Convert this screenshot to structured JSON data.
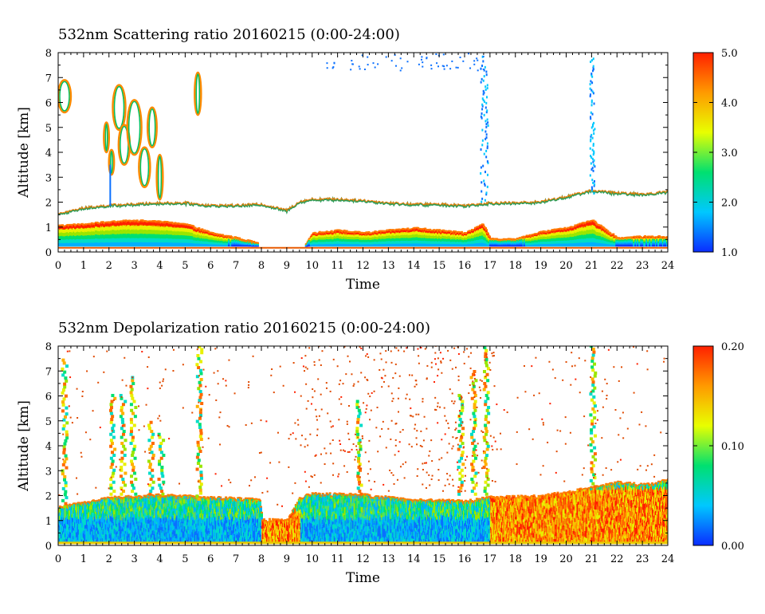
{
  "chart_data": [
    {
      "type": "heatmap",
      "title": "532nm Scattering ratio  20160215 (0:00-24:00)",
      "xlabel": "Time",
      "ylabel": "Altitude [km]",
      "xlim": [
        0,
        24
      ],
      "ylim": [
        0,
        8
      ],
      "x_ticks": [
        "0",
        "1",
        "2",
        "3",
        "4",
        "5",
        "6",
        "7",
        "8",
        "9",
        "10",
        "11",
        "12",
        "13",
        "14",
        "15",
        "16",
        "17",
        "18",
        "19",
        "20",
        "21",
        "22",
        "23",
        "24"
      ],
      "y_ticks": [
        "0",
        "1",
        "2",
        "3",
        "4",
        "5",
        "6",
        "7",
        "8"
      ],
      "colorbar": {
        "range": [
          1.0,
          5.0
        ],
        "tick_labels": [
          "1.0",
          "2.0",
          "3.0",
          "4.0",
          "5.0"
        ],
        "tick_values": [
          1.0,
          2.0,
          3.0,
          4.0,
          5.0
        ],
        "colors": [
          "#0a2cff",
          "#00c8ff",
          "#00e070",
          "#e8ff00",
          "#ff9a00",
          "#ff2000"
        ]
      },
      "boundary_layer_top_km": [
        [
          0,
          1.5
        ],
        [
          1,
          1.75
        ],
        [
          2,
          1.85
        ],
        [
          3,
          1.9
        ],
        [
          4,
          1.95
        ],
        [
          5,
          1.95
        ],
        [
          6,
          1.85
        ],
        [
          7,
          1.85
        ],
        [
          8,
          1.9
        ],
        [
          9,
          1.65
        ],
        [
          9.5,
          2.0
        ],
        [
          10,
          2.1
        ],
        [
          11,
          2.1
        ],
        [
          12,
          2.05
        ],
        [
          13,
          1.95
        ],
        [
          14,
          1.9
        ],
        [
          15,
          1.9
        ],
        [
          16,
          1.85
        ],
        [
          17,
          1.95
        ],
        [
          18,
          1.95
        ],
        [
          19,
          2.0
        ],
        [
          20,
          2.2
        ],
        [
          21,
          2.45
        ],
        [
          22,
          2.35
        ],
        [
          23,
          2.3
        ],
        [
          24,
          2.4
        ]
      ],
      "aerosol_layer_top_km": [
        [
          0,
          1.05
        ],
        [
          1,
          1.1
        ],
        [
          2,
          1.2
        ],
        [
          3,
          1.25
        ],
        [
          4,
          1.2
        ],
        [
          5,
          1.1
        ],
        [
          6,
          0.75
        ],
        [
          7,
          0.55
        ],
        [
          7.8,
          0.35
        ],
        [
          8,
          0.0
        ],
        [
          9.5,
          0.0
        ],
        [
          10,
          0.75
        ],
        [
          11,
          0.85
        ],
        [
          12,
          0.75
        ],
        [
          13,
          0.85
        ],
        [
          14,
          0.95
        ],
        [
          15,
          0.85
        ],
        [
          16,
          0.75
        ],
        [
          16.7,
          1.1
        ],
        [
          17,
          0.5
        ],
        [
          18,
          0.5
        ],
        [
          19,
          0.8
        ],
        [
          20,
          0.95
        ],
        [
          21,
          1.25
        ],
        [
          22,
          0.55
        ],
        [
          23,
          0.6
        ],
        [
          24,
          0.6
        ]
      ],
      "cloud_features": [
        {
          "t_start": 0.0,
          "t_end": 0.5,
          "alt_bottom": 5.6,
          "alt_top": 6.9
        },
        {
          "t_start": 1.8,
          "t_end": 4.2,
          "alt_bottom": 2.5,
          "alt_top": 6.7
        },
        {
          "t_start": 5.4,
          "t_end": 5.6,
          "alt_bottom": 5.5,
          "alt_top": 7.2
        },
        {
          "t_start": 16.6,
          "t_end": 16.9,
          "alt_bottom": 2.0,
          "alt_top": 8.0
        },
        {
          "t_start": 20.9,
          "t_end": 21.1,
          "alt_bottom": 2.4,
          "alt_top": 8.0
        }
      ]
    },
    {
      "type": "heatmap",
      "title": "532nm Depolarization ratio  20160215 (0:00-24:00)",
      "xlabel": "Time",
      "ylabel": "Altitude [km]",
      "xlim": [
        0,
        24
      ],
      "ylim": [
        0,
        8
      ],
      "x_ticks": [
        "0",
        "1",
        "2",
        "3",
        "4",
        "5",
        "6",
        "7",
        "8",
        "9",
        "10",
        "11",
        "12",
        "13",
        "14",
        "15",
        "16",
        "17",
        "18",
        "19",
        "20",
        "21",
        "22",
        "23",
        "24"
      ],
      "y_ticks": [
        "0",
        "1",
        "2",
        "3",
        "4",
        "5",
        "6",
        "7",
        "8"
      ],
      "colorbar": {
        "range": [
          0.0,
          0.2
        ],
        "tick_labels": [
          "0.00",
          "0.10",
          "0.20"
        ],
        "tick_values": [
          0.0,
          0.1,
          0.2
        ],
        "colors": [
          "#0a2cff",
          "#00c8ff",
          "#00e070",
          "#e8ff00",
          "#ff9a00",
          "#ff2000"
        ]
      },
      "boundary_layer_top_km": [
        [
          0,
          1.5
        ],
        [
          2,
          1.9
        ],
        [
          4,
          2.0
        ],
        [
          6,
          1.9
        ],
        [
          7,
          1.85
        ],
        [
          7.9,
          1.8
        ],
        [
          8,
          1.0
        ],
        [
          9,
          1.0
        ],
        [
          9.5,
          1.9
        ],
        [
          10,
          2.05
        ],
        [
          12,
          2.0
        ],
        [
          14,
          1.8
        ],
        [
          16,
          1.75
        ],
        [
          17,
          1.9
        ],
        [
          19,
          1.95
        ],
        [
          21,
          2.3
        ],
        [
          22,
          2.5
        ],
        [
          23,
          2.4
        ],
        [
          24,
          2.6
        ]
      ],
      "high_depol_regions": [
        {
          "t_start": 8.0,
          "t_end": 9.5,
          "alt_bottom": 0.0,
          "alt_top": 1.3
        },
        {
          "t_start": 17.0,
          "t_end": 24.0,
          "alt_bottom": 0.0,
          "alt_top": 2.2
        },
        {
          "t_start": 1.8,
          "t_end": 3.2,
          "alt_bottom": 2.8,
          "alt_top": 6.0
        }
      ]
    }
  ]
}
